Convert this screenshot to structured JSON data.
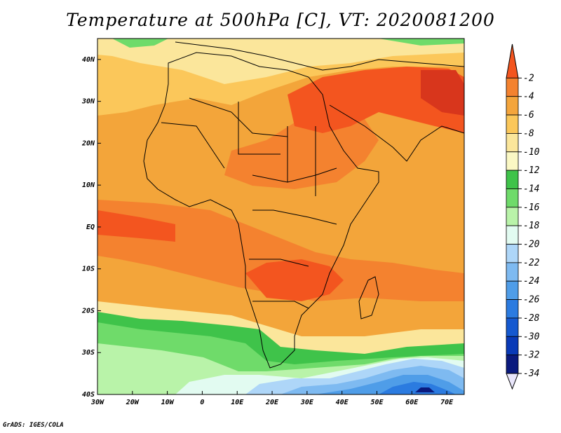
{
  "title": "Temperature at 500hPa [C], VT: 2020081200",
  "credit": "GrADS: IGES/COLA",
  "map": {
    "lon_range": [
      -30,
      75
    ],
    "lat_range": [
      -40,
      45
    ],
    "lon_ticks": [
      {
        "value": -30,
        "label": "30W"
      },
      {
        "value": -20,
        "label": "20W"
      },
      {
        "value": -10,
        "label": "10W"
      },
      {
        "value": 0,
        "label": "0"
      },
      {
        "value": 10,
        "label": "10E"
      },
      {
        "value": 20,
        "label": "20E"
      },
      {
        "value": 30,
        "label": "30E"
      },
      {
        "value": 40,
        "label": "40E"
      },
      {
        "value": 50,
        "label": "50E"
      },
      {
        "value": 60,
        "label": "60E"
      },
      {
        "value": 70,
        "label": "70E"
      }
    ],
    "lat_ticks": [
      {
        "value": 40,
        "label": "40N"
      },
      {
        "value": 30,
        "label": "30N"
      },
      {
        "value": 20,
        "label": "20N"
      },
      {
        "value": 10,
        "label": "10N"
      },
      {
        "value": 0,
        "label": "EQ"
      },
      {
        "value": -10,
        "label": "10S"
      },
      {
        "value": -20,
        "label": "20S"
      },
      {
        "value": -30,
        "label": "30S"
      },
      {
        "value": -40,
        "label": "40S"
      }
    ],
    "background_color": "#f3a53a"
  },
  "colorbar": {
    "levels": [
      "-2",
      "-4",
      "-6",
      "-8",
      "-10",
      "-12",
      "-14",
      "-16",
      "-18",
      "-20",
      "-22",
      "-24",
      "-26",
      "-28",
      "-30",
      "-32",
      "-34"
    ],
    "colors": [
      "#f3551f",
      "#f4822f",
      "#f4a53c",
      "#fbc75a",
      "#fbe69b",
      "#fbf8c4",
      "#3fc34a",
      "#6fdb6a",
      "#b9f3a9",
      "#e2fbf1",
      "#aed6f8",
      "#7ebaf1",
      "#4f9de8",
      "#2b7be0",
      "#1559d0",
      "#093ab7",
      "#0a1a7e",
      "#e9e6fb"
    ]
  },
  "chart_data": {
    "type": "heatmap",
    "title": "Temperature at 500hPa [C], VT: 2020081200",
    "variable_unit": "C",
    "x_range": [
      -30,
      75
    ],
    "y_range": [
      -40,
      45
    ],
    "regions": [
      {
        "lon": 36,
        "lat": 27,
        "value": -3
      },
      {
        "lon": 52,
        "lat": 30,
        "value": -3
      },
      {
        "lon": 65,
        "lat": 32,
        "value": -2
      },
      {
        "lon": 20,
        "lat": -15,
        "value": -3
      },
      {
        "lon": -15,
        "lat": 2,
        "value": -4
      },
      {
        "lon": 45,
        "lat": -15,
        "value": -4
      },
      {
        "lon": 5,
        "lat": 20,
        "value": -6
      },
      {
        "lon": 10,
        "lat": 40,
        "value": -10
      },
      {
        "lon": -20,
        "lat": -25,
        "value": -14
      },
      {
        "lon": 5,
        "lat": -33,
        "value": -18
      },
      {
        "lon": 50,
        "lat": -35,
        "value": -24
      },
      {
        "lon": 64,
        "lat": -39,
        "value": -32
      }
    ]
  }
}
